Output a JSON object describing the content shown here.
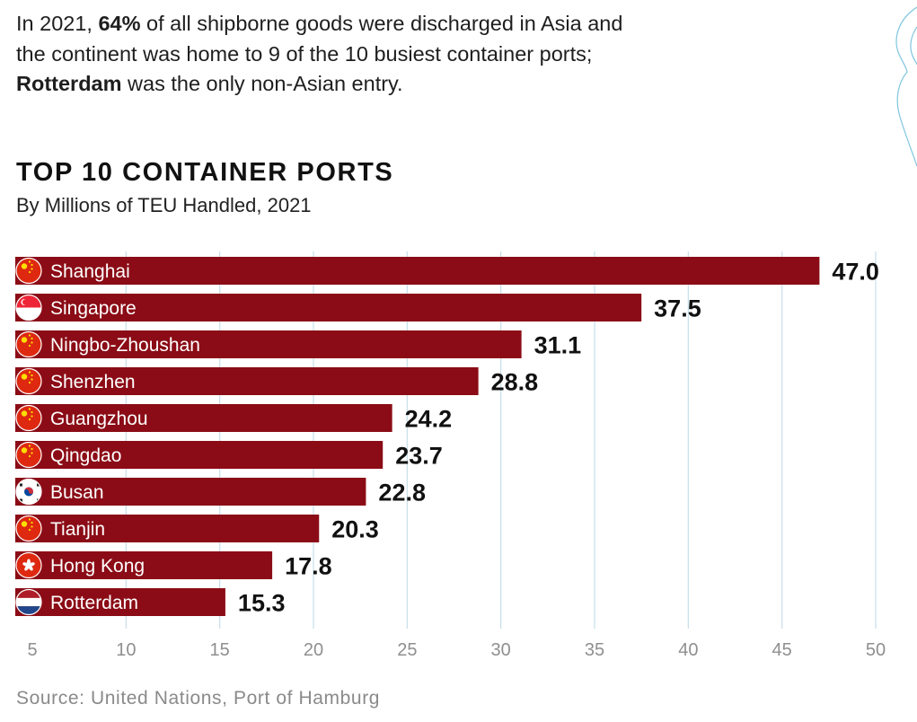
{
  "intro": {
    "part1": "In 2021, ",
    "bold1": "64%",
    "part2": " of all shipborne goods were discharged in Asia and the continent was home to 9 of the 10 busiest container ports; ",
    "bold2": "Rotterdam",
    "part3": " was the only non-Asian entry."
  },
  "source": "Source: United Nations, Port of Hamburg",
  "colors": {
    "bar": "#8b0c16",
    "grid": "#c6dfe9",
    "flag_red": "#de2910",
    "flag_yellow": "#ffde00"
  },
  "chart_data": {
    "type": "bar",
    "orientation": "horizontal",
    "title": "TOP 10 CONTAINER PORTS",
    "subtitle": "By Millions of TEU Handled, 2021",
    "categories": [
      "Shanghai",
      "Singapore",
      "Ningbo-Zhoushan",
      "Shenzhen",
      "Guangzhou",
      "Qingdao",
      "Busan",
      "Tianjin",
      "Hong Kong",
      "Rotterdam"
    ],
    "values": [
      47.0,
      37.5,
      31.1,
      28.8,
      24.2,
      23.7,
      22.8,
      20.3,
      17.8,
      15.3
    ],
    "value_labels": [
      "47.0",
      "37.5",
      "31.1",
      "28.8",
      "24.2",
      "23.7",
      "22.8",
      "20.3",
      "17.8",
      "15.3"
    ],
    "flags": [
      "china-flag-icon",
      "singapore-flag-icon",
      "china-flag-icon",
      "china-flag-icon",
      "china-flag-icon",
      "china-flag-icon",
      "south-korea-flag-icon",
      "china-flag-icon",
      "hong-kong-flag-icon",
      "netherlands-flag-icon"
    ],
    "xlim": [
      5,
      50
    ],
    "xticks": [
      5,
      10,
      15,
      20,
      25,
      30,
      35,
      40,
      45,
      50
    ],
    "grid": true
  }
}
